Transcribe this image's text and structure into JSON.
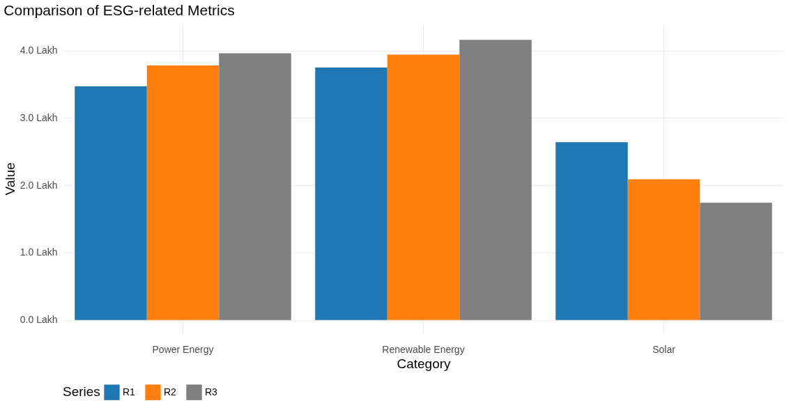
{
  "chart_data": {
    "type": "bar",
    "title": "Comparison of ESG-related Metrics",
    "xlabel": "Category",
    "ylabel": "Value",
    "legend_title": "Series",
    "categories": [
      "Power Energy",
      "Renewable Energy",
      "Solar"
    ],
    "series": [
      {
        "name": "R1",
        "color": "#1f77b4",
        "values": [
          3.47,
          3.75,
          2.64
        ]
      },
      {
        "name": "R2",
        "color": "#ff7f0e",
        "values": [
          3.78,
          3.94,
          2.09
        ]
      },
      {
        "name": "R3",
        "color": "#7f7f7f",
        "values": [
          3.96,
          4.16,
          1.74
        ]
      }
    ],
    "ylim": [
      -0.2,
      4.4
    ],
    "yticks": [
      {
        "value": 0,
        "label": "0.0 Lakh"
      },
      {
        "value": 1,
        "label": "1.0 Lakh"
      },
      {
        "value": 2,
        "label": "2.0 Lakh"
      },
      {
        "value": 3,
        "label": "3.0 Lakh"
      },
      {
        "value": 4,
        "label": "4.0 Lakh"
      }
    ],
    "grid": true,
    "legend": "bottom"
  }
}
